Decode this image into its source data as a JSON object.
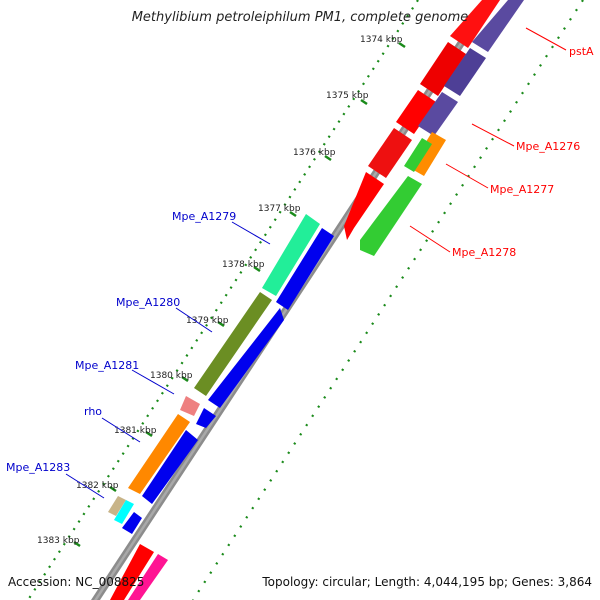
{
  "title": "Methylibium petroleiphilum PM1, complete genome",
  "accession": "Accession: NC_008825",
  "topology": "Topology: circular; Length: 4,044,195 bp; Genes: 3,864",
  "ticks": [
    {
      "kbp": 1374,
      "label": "1374 kbp"
    },
    {
      "kbp": 1375,
      "label": "1375 kbp"
    },
    {
      "kbp": 1376,
      "label": "1376 kbp"
    },
    {
      "kbp": 1377,
      "label": "1377 kbp"
    },
    {
      "kbp": 1378,
      "label": "1378 kbp"
    },
    {
      "kbp": 1379,
      "label": "1379 kbp"
    },
    {
      "kbp": 1380,
      "label": "1380 kbp"
    },
    {
      "kbp": 1381,
      "label": "1381 kbp"
    },
    {
      "kbp": 1382,
      "label": "1382 kbp"
    },
    {
      "kbp": 1383,
      "label": "1383 kbp"
    }
  ],
  "gene_labels": {
    "forward": [
      "pstA",
      "Mpe_A1276",
      "Mpe_A1277",
      "Mpe_A1278"
    ],
    "reverse": [
      "Mpe_A1279",
      "Mpe_A1280",
      "Mpe_A1281",
      "rho",
      "Mpe_A1283"
    ]
  },
  "colors": {
    "forward_label": "#ff0000",
    "reverse_label": "#0000cc",
    "backbone": "#888888",
    "tick": "#008000",
    "cds_red": "#ff0000",
    "cds_blue": "#0000ee",
    "cds_purple": "#5a4a9c",
    "cds_green": "#33cc33",
    "cds_orange": "#ff8800",
    "cds_teal": "#1ee89a",
    "cds_olive": "#6b8e23",
    "cds_pink": "#e88080",
    "cds_cyan": "#00ffff",
    "cds_tan": "#c8b488",
    "cds_magenta": "#ff1493"
  }
}
